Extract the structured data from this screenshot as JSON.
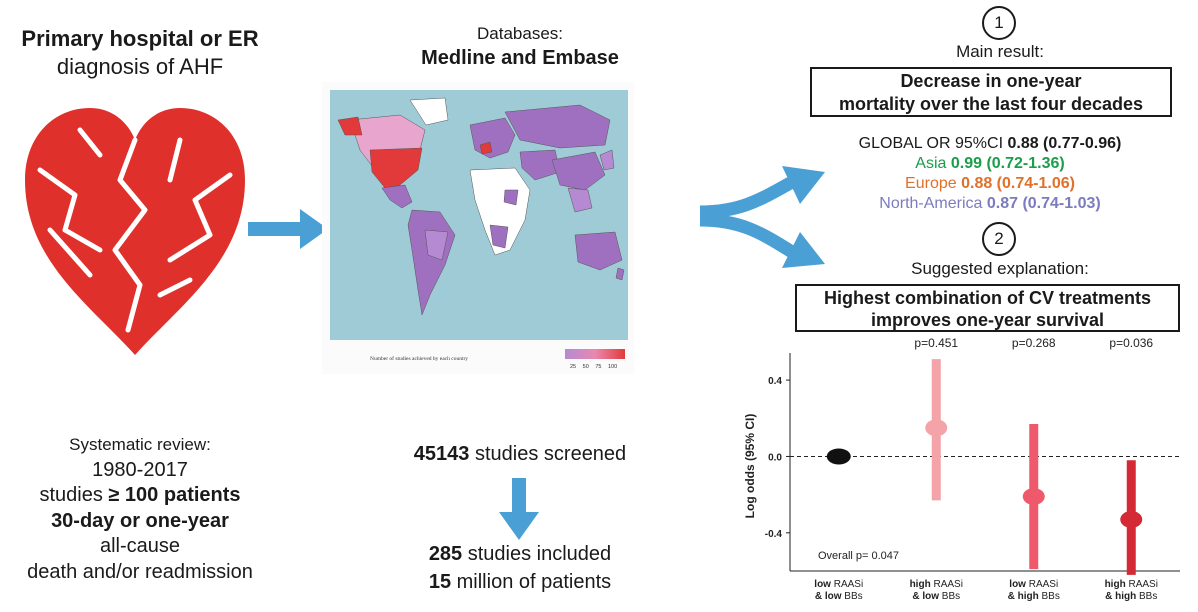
{
  "left": {
    "title_line1": "Primary hospital or ER",
    "title_line2": "diagnosis of AHF",
    "review_label": "Systematic review:",
    "review_years": "1980-2017",
    "review_line3_prefix": "studies ",
    "review_line3_bold": "≥ 100 patients",
    "review_line4": "30-day or one-year",
    "review_line5": "all-cause",
    "review_line6": "death and/or readmission"
  },
  "middle": {
    "databases_label": "Databases:",
    "databases_names": "Medline and Embase",
    "map_legend_title": "Number of studies achieved by each country",
    "map_legend_ticks": [
      "25",
      "50",
      "75",
      "100"
    ],
    "screened_count": "45143",
    "screened_text": " studies screened",
    "included_count": "285",
    "included_text": " studies included",
    "patients_count": "15",
    "patients_text": " million of patients"
  },
  "right": {
    "step1": "1",
    "main_result_label": "Main result:",
    "main_result_line1": "Decrease in one-year",
    "main_result_line2": "mortality over the last four decades",
    "global_label": "GLOBAL OR 95%CI ",
    "global_value": "0.88 (0.77-0.96)",
    "asia_label": "Asia ",
    "asia_value": "0.99 (0.72-1.36)",
    "europe_label": "Europe ",
    "europe_value": "0.88 (0.74-1.06)",
    "na_label": "North-America ",
    "na_value": "0.87 (0.74-1.03)",
    "step2": "2",
    "suggested_label": "Suggested explanation:",
    "suggested_line1": "Highest combination of CV treatments",
    "suggested_line2": "improves one-year survival"
  },
  "colors": {
    "arrow": "#4a9fd4",
    "heart": "#e0302b",
    "map_ocean": "#9fcbd6",
    "asia": "#1a9e4a",
    "europe": "#e0702a",
    "north_america": "#7b7bbf"
  },
  "chart_data": {
    "type": "scatter",
    "ylabel": "Log odds (95% CI)",
    "ylim": [
      -0.6,
      0.5
    ],
    "yticks": [
      "0.4",
      "0.0",
      "-0.4"
    ],
    "reference_line": 0.0,
    "annotation": "Overall p= 0.047",
    "categories": [
      {
        "bold": "low",
        "rest1": " RAASi",
        "line2_bold": "& low",
        "line2_rest": " BBs"
      },
      {
        "bold": "high",
        "rest1": " RAASi",
        "line2_bold": "& low",
        "line2_rest": " BBs"
      },
      {
        "bold": "low",
        "rest1": " RAASi",
        "line2_bold": "& high",
        "line2_rest": " BBs"
      },
      {
        "bold": "high",
        "rest1": " RAASi",
        "line2_bold": "& high",
        "line2_rest": " BBs"
      }
    ],
    "points": [
      {
        "estimate": 0.0,
        "lower": 0.0,
        "upper": 0.0,
        "p": "",
        "color": "#111111"
      },
      {
        "estimate": 0.15,
        "lower": -0.23,
        "upper": 0.51,
        "p": "p=0.451",
        "color": "#f4a3a8"
      },
      {
        "estimate": -0.21,
        "lower": -0.59,
        "upper": 0.17,
        "p": "p=0.268",
        "color": "#ee5a6c"
      },
      {
        "estimate": -0.33,
        "lower": -0.62,
        "upper": -0.02,
        "p": "p=0.036",
        "color": "#d42a35"
      }
    ]
  }
}
